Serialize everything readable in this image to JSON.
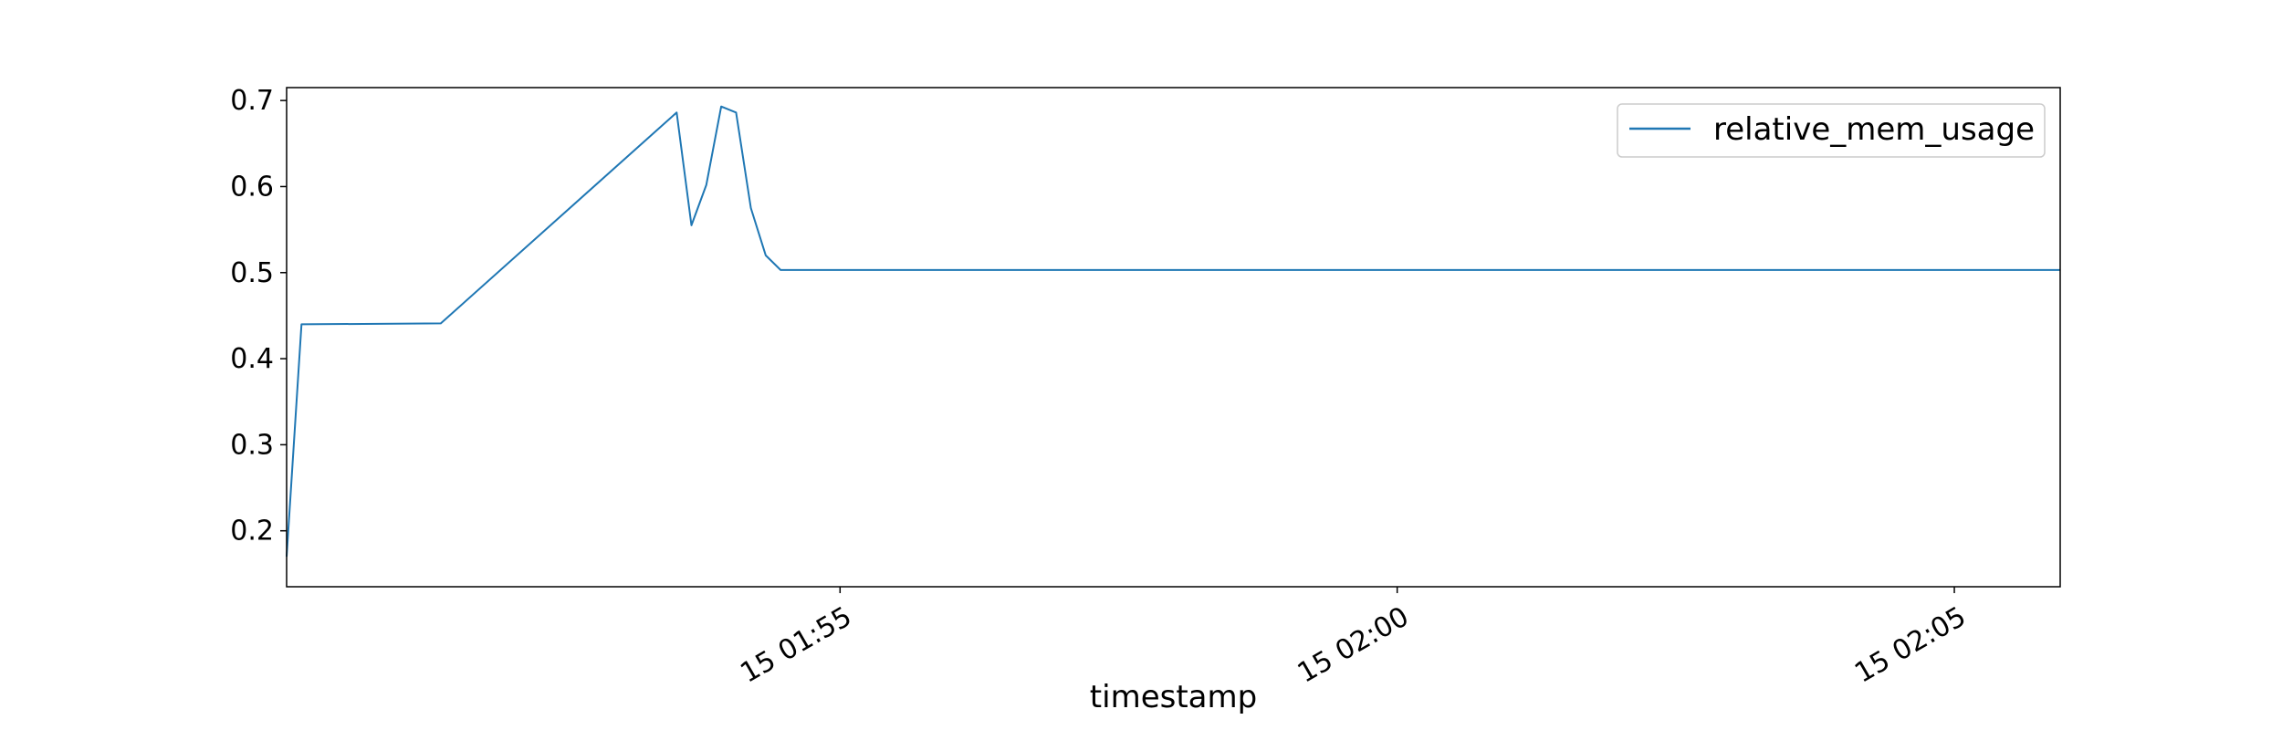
{
  "chart_data": {
    "type": "line",
    "title": "",
    "xlabel": "timestamp",
    "ylabel": "",
    "grid": false,
    "legend_position": "upper-right",
    "colors": {
      "series": "#1f77b4",
      "axes": "#000000",
      "background": "#ffffff"
    },
    "xlim": [
      "01:50:02",
      "02:05:57"
    ],
    "ylim": [
      0.135,
      0.715
    ],
    "x_ticks": [
      {
        "value": "01:55:00",
        "label": "15 01:55"
      },
      {
        "value": "02:00:00",
        "label": "15 02:00"
      },
      {
        "value": "02:05:00",
        "label": "15 02:05"
      }
    ],
    "y_ticks": [
      {
        "value": 0.2,
        "label": "0.2"
      },
      {
        "value": 0.3,
        "label": "0.3"
      },
      {
        "value": 0.4,
        "label": "0.4"
      },
      {
        "value": 0.5,
        "label": "0.5"
      },
      {
        "value": 0.6,
        "label": "0.6"
      },
      {
        "value": 0.7,
        "label": "0.7"
      }
    ],
    "series": [
      {
        "name": "relative_mem_usage",
        "x": [
          "01:50:02",
          "01:50:10",
          "01:51:25",
          "01:53:32",
          "01:53:40",
          "01:53:48",
          "01:53:56",
          "01:54:04",
          "01:54:12",
          "01:54:20",
          "01:54:28",
          "01:55:00",
          "01:57:00",
          "02:00:00",
          "02:03:00",
          "02:05:57"
        ],
        "y": [
          0.17,
          0.44,
          0.441,
          0.686,
          0.555,
          0.602,
          0.693,
          0.686,
          0.575,
          0.52,
          0.503,
          0.503,
          0.503,
          0.503,
          0.503,
          0.503
        ]
      }
    ]
  }
}
